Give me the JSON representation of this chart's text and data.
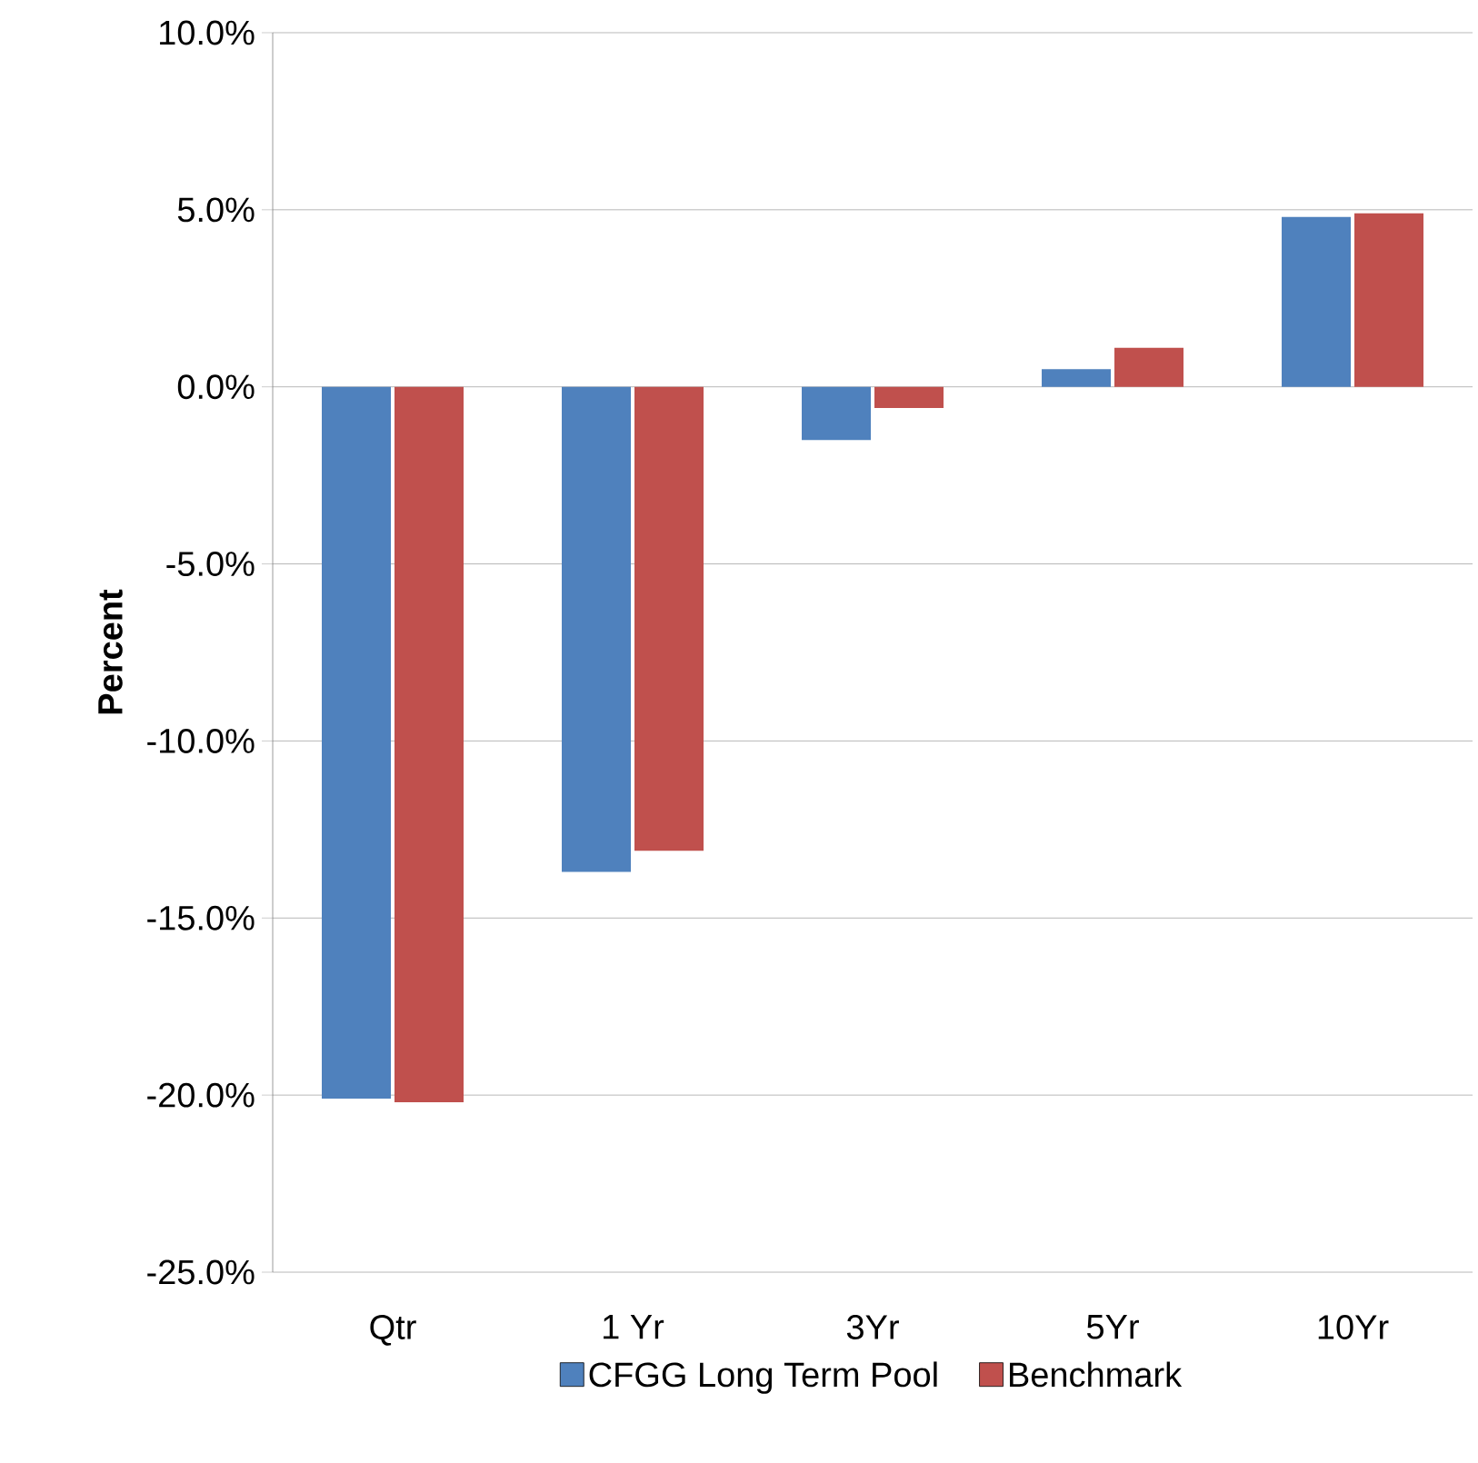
{
  "chart_data": {
    "type": "bar",
    "ylabel": "Percent",
    "categories": [
      "Qtr",
      "1 Yr",
      "3Yr",
      "5Yr",
      "10Yr"
    ],
    "series": [
      {
        "name": "CFGG Long Term Pool",
        "color": "#4f81bd",
        "values": [
          -20.1,
          -13.7,
          -1.5,
          0.5,
          4.8
        ]
      },
      {
        "name": "Benchmark",
        "color": "#c0504d",
        "values": [
          -20.2,
          -13.1,
          -0.6,
          1.1,
          4.9
        ]
      }
    ],
    "ylim": [
      -25,
      10
    ],
    "yticks": [
      {
        "value": -25,
        "label": "-25.0%"
      },
      {
        "value": -20,
        "label": "-20.0%"
      },
      {
        "value": -15,
        "label": "-15.0%"
      },
      {
        "value": -10,
        "label": "-10.0%"
      },
      {
        "value": -5,
        "label": "-5.0%"
      },
      {
        "value": 0,
        "label": "0.0%"
      },
      {
        "value": 5,
        "label": "5.0%"
      },
      {
        "value": 10,
        "label": "10.0%"
      }
    ],
    "grid": "y",
    "legend": "bottom"
  }
}
